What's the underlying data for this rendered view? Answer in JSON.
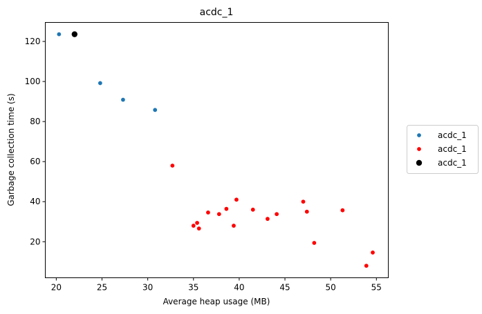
{
  "chart_data": {
    "type": "scatter",
    "title": "acdc_1",
    "xlabel": "Average heap usage (MB)",
    "ylabel": "Garbage collection time (s)",
    "xlim": [
      18.8,
      56.3
    ],
    "ylim": [
      2.0,
      129.5
    ],
    "xticks": [
      20,
      25,
      30,
      35,
      40,
      45,
      50,
      55
    ],
    "yticks": [
      20,
      40,
      60,
      80,
      100,
      120
    ],
    "grid": false,
    "legend_position": "center-right-outside",
    "series": [
      {
        "name": "acdc_1",
        "color": "#1f77b4",
        "marker_size": "small",
        "points": [
          {
            "x": 20.3,
            "y": 123.6
          },
          {
            "x": 24.8,
            "y": 99.2
          },
          {
            "x": 27.3,
            "y": 90.9
          },
          {
            "x": 30.8,
            "y": 85.8
          }
        ]
      },
      {
        "name": "acdc_1",
        "color": "#ff0000",
        "marker_size": "small",
        "points": [
          {
            "x": 32.7,
            "y": 58.0
          },
          {
            "x": 35.0,
            "y": 28.0
          },
          {
            "x": 35.4,
            "y": 29.4
          },
          {
            "x": 35.6,
            "y": 26.6
          },
          {
            "x": 36.6,
            "y": 34.6
          },
          {
            "x": 37.8,
            "y": 33.8
          },
          {
            "x": 38.6,
            "y": 36.4
          },
          {
            "x": 39.4,
            "y": 28.0
          },
          {
            "x": 39.7,
            "y": 41.0
          },
          {
            "x": 41.5,
            "y": 36.0
          },
          {
            "x": 43.1,
            "y": 31.4
          },
          {
            "x": 44.1,
            "y": 33.8
          },
          {
            "x": 47.0,
            "y": 40.0
          },
          {
            "x": 47.4,
            "y": 35.0
          },
          {
            "x": 48.2,
            "y": 19.4
          },
          {
            "x": 51.3,
            "y": 35.7
          },
          {
            "x": 53.9,
            "y": 8.0
          },
          {
            "x": 54.6,
            "y": 14.6
          }
        ]
      },
      {
        "name": "acdc_1",
        "color": "#000000",
        "marker_size": "large",
        "points": [
          {
            "x": 22.0,
            "y": 123.6
          }
        ]
      }
    ]
  }
}
